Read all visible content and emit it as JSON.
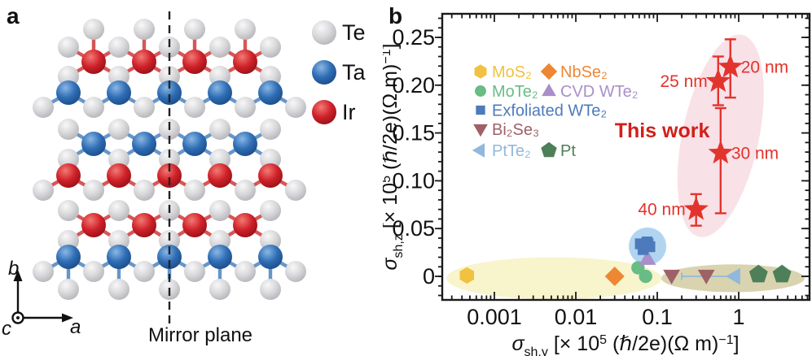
{
  "figure": {
    "background": "#ffffff",
    "panel_a": {
      "label": "a",
      "legend": [
        {
          "name": "Te",
          "color": "#d2d2d5"
        },
        {
          "name": "Ta",
          "color": "#2e6db5"
        },
        {
          "name": "Ir",
          "color": "#d0212a"
        }
      ],
      "mirror_plane_label": "Mirror plane",
      "axis_labels": {
        "vertical": "b",
        "horizontal": "a",
        "out_of_plane": "c"
      }
    },
    "panel_b": {
      "label": "b"
    }
  },
  "chart_data": {
    "type": "scatter",
    "x_scale": "log",
    "xlim": [
      0.00022,
      7.5
    ],
    "ylim": [
      -0.026,
      0.275
    ],
    "x_ticks": [
      0.001,
      0.01,
      0.1,
      1
    ],
    "x_tick_labels": [
      "0.001",
      "0.01",
      "0.1",
      "1"
    ],
    "y_ticks": [
      0,
      0.05,
      0.1,
      0.15,
      0.2,
      0.25
    ],
    "y_tick_labels": [
      "0",
      "0.05",
      "0.10",
      "0.15",
      "0.20",
      "0.25"
    ],
    "y_minor_step": 0.01,
    "xlabel": {
      "sigma": "σ",
      "sub": "sh,y",
      "pre": " [× 10",
      "exp": "5",
      "mid": " (ℏ/2e)(Ω m)",
      "exp2": "−1",
      "post": "]"
    },
    "ylabel": {
      "sigma": "σ",
      "sub": "sh,z",
      "pre": " [× 10",
      "exp": "5",
      "mid": " (ℏ/2e)(Ω m)",
      "exp2": "−1",
      "post": "]"
    },
    "annotation": {
      "text": "This work",
      "color": "#d11f1a",
      "x": 0.115,
      "y": 0.152
    },
    "legend_rows": [
      [
        "MoS₂",
        "NbSe₂"
      ],
      [
        "MoTe₂",
        "CVD WTe₂"
      ],
      [
        "Exfoliated WTe₂"
      ],
      [
        "Bi₂Se₃"
      ],
      [
        "PtTe₂",
        "Pt"
      ]
    ],
    "highlight_regions": [
      {
        "name": "in-plane-group",
        "cx": 0.0054,
        "cy": -0.002,
        "rx_decades": 1.32,
        "ry": 0.022,
        "rot": 0,
        "color": "#f7f3c6",
        "opacity": 0.9
      },
      {
        "name": "metal-group",
        "cx": 0.85,
        "cy": -0.002,
        "rx_decades": 0.88,
        "ry": 0.0145,
        "rot": 0,
        "color": "#d7d2ab",
        "opacity": 0.95
      },
      {
        "name": "wte2-group",
        "cx": 0.076,
        "cy": 0.0315,
        "rx_decades": 0.23,
        "ry": 0.0196,
        "rot": 0,
        "color": "#a9d0ef",
        "opacity": 0.9
      },
      {
        "name": "this-work-group",
        "cx": 0.6,
        "cy": 0.147,
        "rx_decades": 0.47,
        "ry": 0.108,
        "rot": 12,
        "color": "#f7d9e2",
        "opacity": 0.8
      }
    ],
    "series": [
      {
        "name": "MoS₂",
        "marker": "hexagon",
        "color": "#f0c23f",
        "points": [
          {
            "x": 0.00046,
            "y": 0.001
          }
        ]
      },
      {
        "name": "NbSe₂",
        "marker": "diamond",
        "color": "#ee8733",
        "points": [
          {
            "x": 0.03,
            "y": 0.0
          }
        ]
      },
      {
        "name": "MoTe₂",
        "marker": "circle",
        "color": "#68bc86",
        "points": [
          {
            "x": 0.058,
            "y": 0.009
          },
          {
            "x": 0.072,
            "y": 0.0
          }
        ]
      },
      {
        "name": "CVD WTe₂",
        "marker": "triangle-up",
        "color": "#a98fc9",
        "points": [
          {
            "x": 0.076,
            "y": 0.018
          }
        ]
      },
      {
        "name": "Exfoliated WTe₂",
        "marker": "square",
        "color": "#4d7abb",
        "points": [
          {
            "x": 0.062,
            "y": 0.034,
            "yerr": [
              0.03,
              0.038
            ]
          },
          {
            "x": 0.075,
            "y": 0.036,
            "yerr": [
              0.032,
              0.04
            ],
            "xerr": [
              0.064,
              0.088
            ]
          },
          {
            "x": 0.067,
            "y": 0.028
          },
          {
            "x": 0.081,
            "y": 0.031,
            "yerr": [
              0.028,
              0.034
            ]
          }
        ]
      },
      {
        "name": "Bi₂Se₃",
        "marker": "triangle-down",
        "color": "#9e6168",
        "points": [
          {
            "x": 0.15,
            "y": 0.001
          },
          {
            "x": 0.4,
            "y": 0.001
          }
        ]
      },
      {
        "name": "PtTe₂",
        "marker": "triangle-left",
        "color": "#92b8db",
        "points": [
          {
            "x": 0.91,
            "y": 0.0,
            "xerr": [
              0.2,
              0.93
            ]
          }
        ]
      },
      {
        "name": "Pt",
        "marker": "pentagon",
        "color": "#4d7f58",
        "points": [
          {
            "x": 1.75,
            "y": 0.002
          },
          {
            "x": 3.4,
            "y": 0.002
          }
        ]
      },
      {
        "name": "This work",
        "marker": "star",
        "color": "#e2342c",
        "points": [
          {
            "x": 0.79,
            "y": 0.219,
            "yerr": [
              0.187,
              0.248
            ],
            "label": "20 nm",
            "label_side": "right"
          },
          {
            "x": 0.56,
            "y": 0.204,
            "yerr": [
              0.179,
              0.23
            ],
            "label": "25 nm",
            "label_side": "left"
          },
          {
            "x": 0.6,
            "y": 0.129,
            "yerr": [
              0.066,
              0.176
            ],
            "label": "30 nm",
            "label_side": "right"
          },
          {
            "x": 0.3,
            "y": 0.07,
            "yerr": [
              0.053,
              0.086
            ],
            "label": "40 nm",
            "label_side": "left"
          }
        ]
      }
    ]
  }
}
